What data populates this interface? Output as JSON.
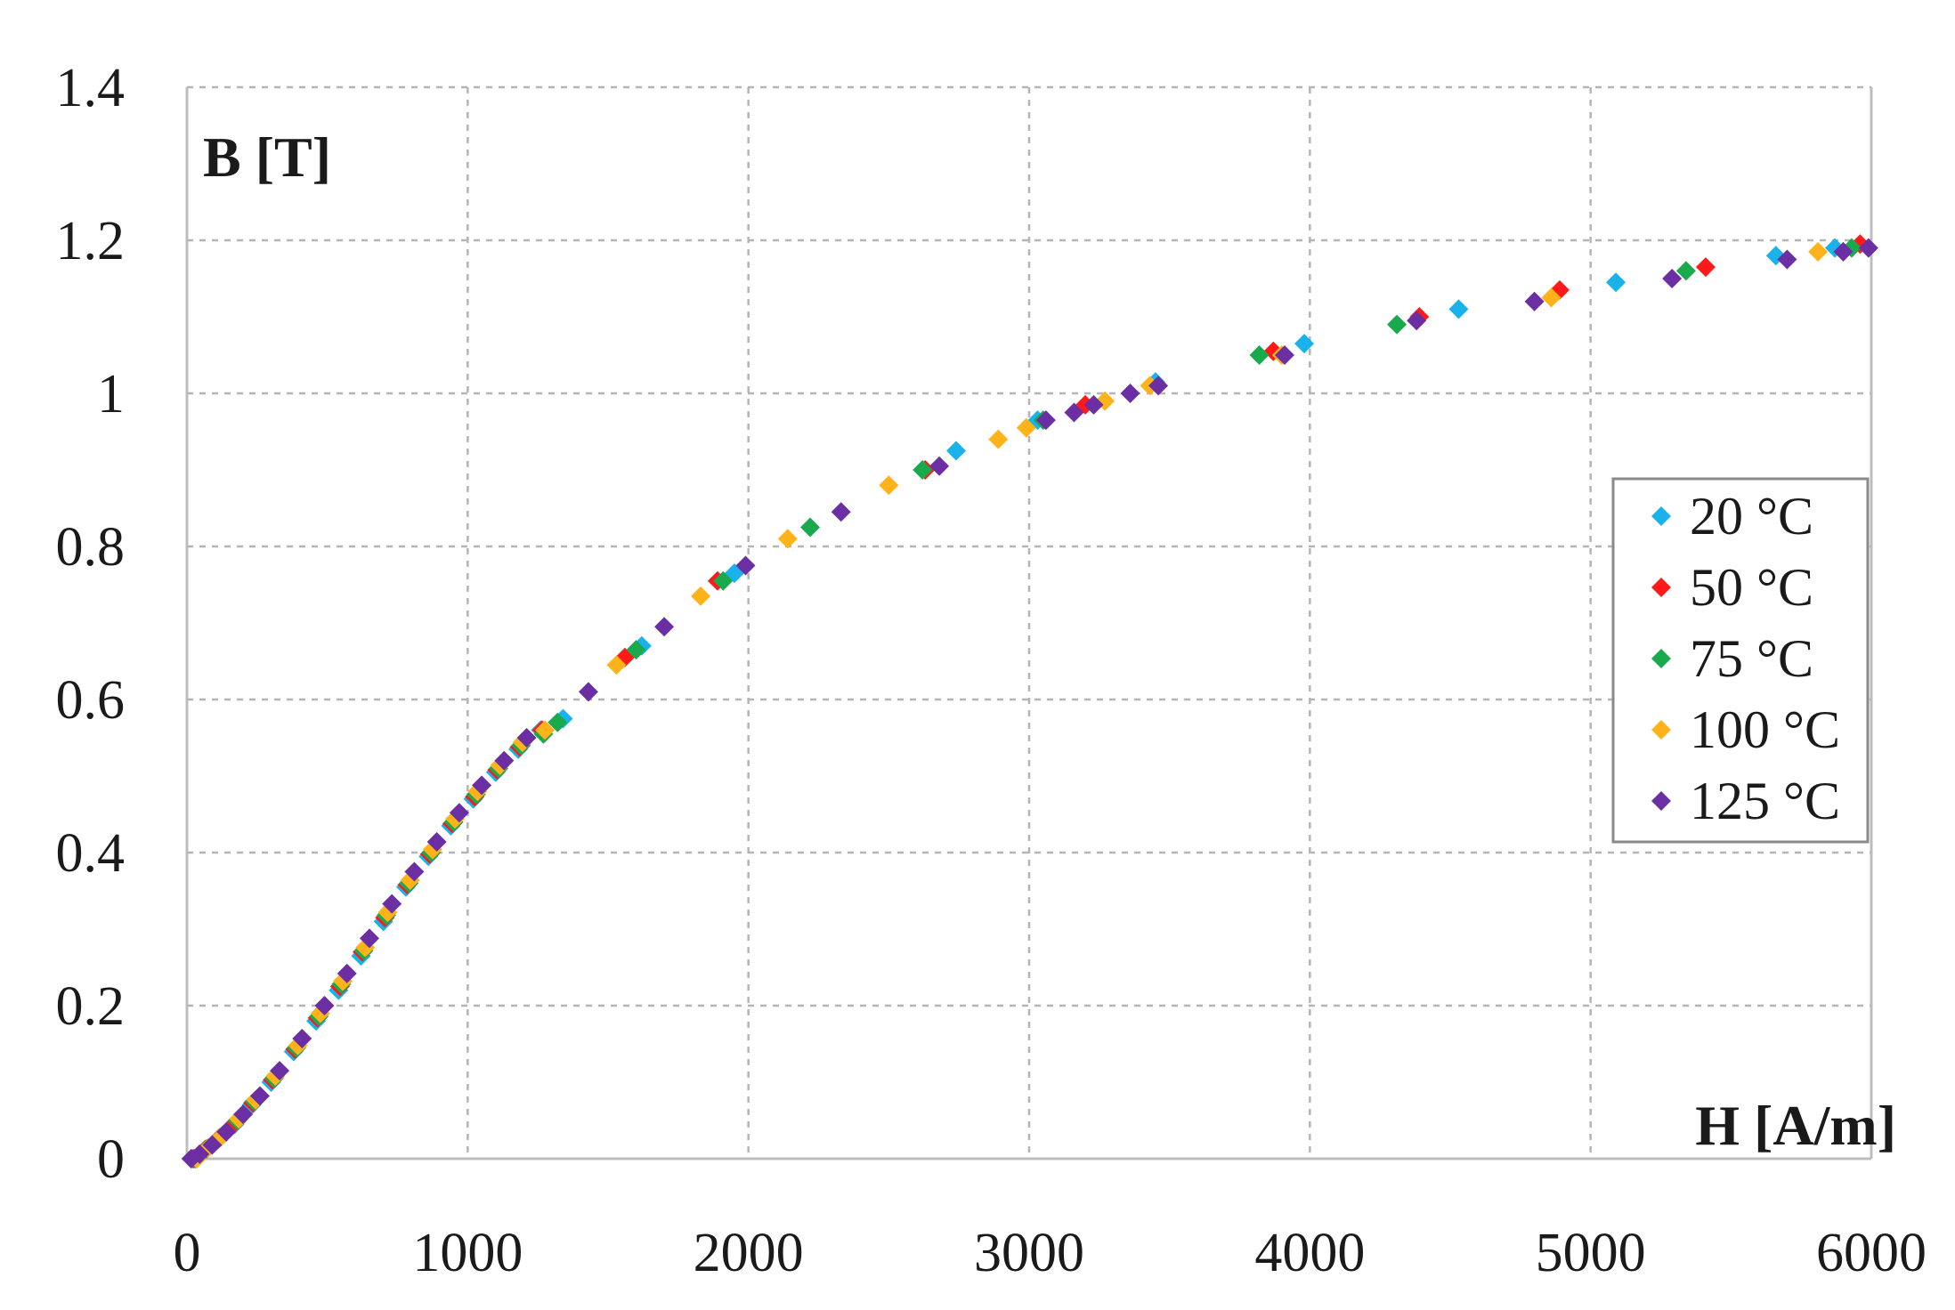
{
  "chart_data": {
    "type": "scatter",
    "xlabel": "H [A/m]",
    "ylabel": "B [T]",
    "xlim": [
      0,
      6000
    ],
    "ylim": [
      0,
      1.4
    ],
    "xticks": [
      0,
      1000,
      2000,
      3000,
      4000,
      5000,
      6000
    ],
    "yticks": [
      0,
      0.2,
      0.4,
      0.6,
      0.8,
      1,
      1.2,
      1.4
    ],
    "xtick_labels": [
      "0",
      "1000",
      "2000",
      "3000",
      "4000",
      "5000",
      "6000"
    ],
    "ytick_labels": [
      "0",
      "0.2",
      "0.4",
      "0.6",
      "0.8",
      "1",
      "1.2",
      "1.4"
    ],
    "grid": true,
    "legend_position": "right",
    "series": [
      {
        "name": "20 °C",
        "color": "#1ab2ea",
        "x": [
          20,
          60,
          110,
          170,
          230,
          300,
          380,
          460,
          540,
          620,
          700,
          780,
          860,
          940,
          1020,
          1100,
          1180,
          1260,
          1340,
          1620,
          1950,
          2740,
          3030,
          3450,
          3980,
          4530,
          5090,
          5660,
          5870
        ],
        "y": [
          0,
          0.01,
          0.025,
          0.045,
          0.07,
          0.1,
          0.14,
          0.18,
          0.22,
          0.265,
          0.31,
          0.355,
          0.395,
          0.435,
          0.47,
          0.505,
          0.535,
          0.56,
          0.575,
          0.67,
          0.765,
          0.925,
          0.965,
          1.015,
          1.065,
          1.11,
          1.145,
          1.18,
          1.19
        ]
      },
      {
        "name": "50 °C",
        "color": "#ff1a1a",
        "x": [
          25,
          65,
          115,
          175,
          235,
          305,
          385,
          465,
          545,
          625,
          705,
          785,
          865,
          945,
          1025,
          1105,
          1185,
          1265,
          1560,
          1890,
          2630,
          3200,
          3870,
          4390,
          4890,
          5410,
          5960
        ],
        "y": [
          0,
          0.012,
          0.027,
          0.048,
          0.073,
          0.103,
          0.143,
          0.184,
          0.225,
          0.27,
          0.315,
          0.358,
          0.398,
          0.438,
          0.473,
          0.508,
          0.538,
          0.56,
          0.655,
          0.755,
          0.9,
          0.985,
          1.055,
          1.1,
          1.135,
          1.165,
          1.195
        ]
      },
      {
        "name": "75 °C",
        "color": "#1aaa4e",
        "x": [
          30,
          70,
          120,
          180,
          240,
          310,
          390,
          470,
          550,
          630,
          710,
          790,
          870,
          950,
          1030,
          1110,
          1190,
          1270,
          1320,
          1600,
          1910,
          2220,
          2620,
          3050,
          3820,
          4310,
          5340,
          5930
        ],
        "y": [
          0,
          0.013,
          0.028,
          0.05,
          0.075,
          0.105,
          0.145,
          0.186,
          0.228,
          0.272,
          0.318,
          0.36,
          0.4,
          0.44,
          0.476,
          0.51,
          0.54,
          0.555,
          0.57,
          0.665,
          0.755,
          0.825,
          0.9,
          0.965,
          1.05,
          1.09,
          1.16,
          1.19
        ]
      },
      {
        "name": "100 °C",
        "color": "#ffb31a",
        "x": [
          35,
          75,
          125,
          185,
          245,
          315,
          395,
          475,
          555,
          635,
          715,
          795,
          875,
          955,
          1035,
          1115,
          1195,
          1275,
          1530,
          1830,
          2140,
          2500,
          2890,
          2990,
          3270,
          3430,
          3900,
          4860,
          5810
        ],
        "y": [
          0,
          0.014,
          0.03,
          0.052,
          0.077,
          0.108,
          0.148,
          0.19,
          0.232,
          0.276,
          0.322,
          0.364,
          0.404,
          0.444,
          0.48,
          0.514,
          0.544,
          0.56,
          0.645,
          0.735,
          0.81,
          0.88,
          0.94,
          0.955,
          0.99,
          1.01,
          1.05,
          1.125,
          1.185
        ]
      },
      {
        "name": "125 °C",
        "color": "#6b2fa3",
        "x": [
          15,
          45,
          90,
          140,
          200,
          260,
          330,
          410,
          490,
          570,
          650,
          730,
          810,
          890,
          970,
          1050,
          1130,
          1210,
          1430,
          1700,
          1990,
          2330,
          2680,
          3060,
          3160,
          3230,
          3360,
          3460,
          3910,
          4380,
          4800,
          5290,
          5700,
          5900,
          5990
        ],
        "y": [
          0,
          0.006,
          0.018,
          0.035,
          0.058,
          0.082,
          0.115,
          0.157,
          0.2,
          0.242,
          0.288,
          0.333,
          0.375,
          0.414,
          0.452,
          0.488,
          0.52,
          0.55,
          0.61,
          0.695,
          0.775,
          0.845,
          0.905,
          0.965,
          0.975,
          0.985,
          1.0,
          1.01,
          1.05,
          1.095,
          1.12,
          1.15,
          1.175,
          1.185,
          1.19
        ]
      }
    ]
  }
}
